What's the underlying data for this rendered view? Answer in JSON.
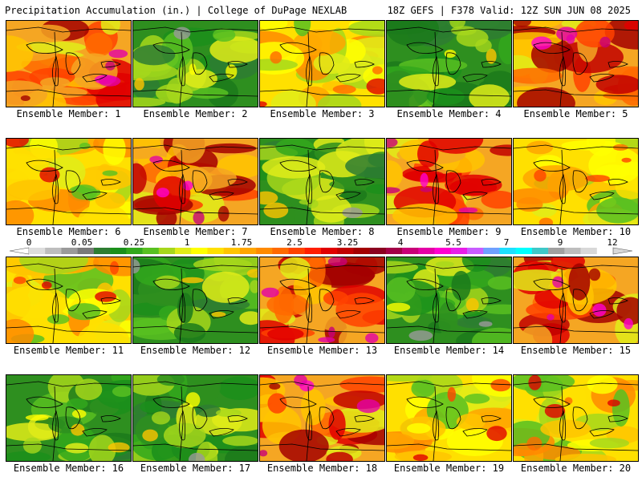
{
  "header": {
    "left": "Precipitation Accumulation (in.) | College of DuPage NEXLAB",
    "right": "18Z GEFS | F378 Valid: 12Z SUN JUN 08 2025"
  },
  "legend": {
    "labels": [
      "0",
      "0.05",
      "0.25",
      "1",
      "1.75",
      "2.5",
      "3.25",
      "4",
      "5.5",
      "7",
      "9",
      "12"
    ],
    "colors": [
      "#dddddd",
      "#bdbdbd",
      "#9a9a9a",
      "#7a7a7a",
      "#2e7d32",
      "#1b8f1b",
      "#32a81c",
      "#58c021",
      "#a6d71b",
      "#e0ec19",
      "#ffff00",
      "#ffe000",
      "#ffc400",
      "#ffa500",
      "#ff8a00",
      "#ff6a00",
      "#ff4200",
      "#ff1e00",
      "#e00000",
      "#c10000",
      "#a30000",
      "#8b0020",
      "#a30047",
      "#c80078",
      "#e400a6",
      "#ff00d0",
      "#e81ee8",
      "#c85cff",
      "#6fa0ff",
      "#1ee0ff",
      "#00ffff",
      "#3ec8c8",
      "#a0a0a0",
      "#bdbdbd",
      "#d8d8d8",
      "#ffffff"
    ]
  },
  "members": [
    {
      "caption": "Ensemble Member: 1",
      "scheme": "red"
    },
    {
      "caption": "Ensemble Member: 2",
      "scheme": "green"
    },
    {
      "caption": "Ensemble Member: 3",
      "scheme": "yellow"
    },
    {
      "caption": "Ensemble Member: 4",
      "scheme": "green"
    },
    {
      "caption": "Ensemble Member: 5",
      "scheme": "red"
    },
    {
      "caption": "Ensemble Member: 6",
      "scheme": "yellow"
    },
    {
      "caption": "Ensemble Member: 7",
      "scheme": "red"
    },
    {
      "caption": "Ensemble Member: 8",
      "scheme": "green"
    },
    {
      "caption": "Ensemble Member: 9",
      "scheme": "red"
    },
    {
      "caption": "Ensemble Member: 10",
      "scheme": "yellow"
    },
    {
      "caption": "Ensemble Member: 11",
      "scheme": "yellow"
    },
    {
      "caption": "Ensemble Member: 12",
      "scheme": "green"
    },
    {
      "caption": "Ensemble Member: 13",
      "scheme": "red"
    },
    {
      "caption": "Ensemble Member: 14",
      "scheme": "green"
    },
    {
      "caption": "Ensemble Member: 15",
      "scheme": "red"
    },
    {
      "caption": "Ensemble Member: 16",
      "scheme": "green"
    },
    {
      "caption": "Ensemble Member: 17",
      "scheme": "green"
    },
    {
      "caption": "Ensemble Member: 18",
      "scheme": "red"
    },
    {
      "caption": "Ensemble Member: 19",
      "scheme": "yellow"
    },
    {
      "caption": "Ensemble Member: 20",
      "scheme": "yellow"
    }
  ]
}
